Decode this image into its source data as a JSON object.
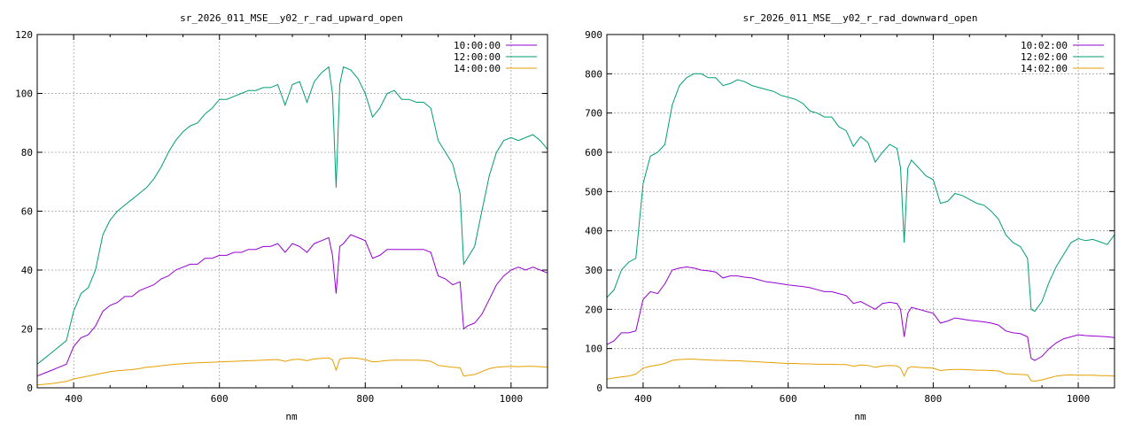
{
  "chart_data": [
    {
      "type": "line",
      "title": "sr_2026_011_MSE__y02_r_rad_upward_open",
      "xlabel": "nm",
      "ylabel": "",
      "xlim": [
        350,
        1050
      ],
      "ylim": [
        0,
        120
      ],
      "xticks": [
        400,
        600,
        800,
        1000
      ],
      "yticks": [
        0,
        20,
        40,
        60,
        80,
        100,
        120
      ],
      "grid": true,
      "legend_position": "top-right",
      "x": [
        350,
        360,
        370,
        380,
        390,
        400,
        410,
        420,
        430,
        440,
        450,
        460,
        470,
        480,
        490,
        500,
        510,
        520,
        530,
        540,
        550,
        560,
        570,
        580,
        590,
        600,
        610,
        620,
        630,
        640,
        650,
        660,
        670,
        680,
        690,
        700,
        710,
        720,
        730,
        740,
        750,
        755,
        760,
        765,
        770,
        780,
        790,
        800,
        810,
        820,
        830,
        840,
        850,
        860,
        870,
        880,
        890,
        900,
        910,
        920,
        930,
        935,
        940,
        950,
        960,
        970,
        980,
        990,
        1000,
        1010,
        1020,
        1030,
        1040,
        1050
      ],
      "series": [
        {
          "name": "10:00:00",
          "color": "#9400d3",
          "values": [
            4,
            5,
            6,
            7,
            8,
            14,
            17,
            18,
            21,
            26,
            28,
            29,
            31,
            31,
            33,
            34,
            35,
            37,
            38,
            40,
            41,
            42,
            42,
            44,
            44,
            45,
            45,
            46,
            46,
            47,
            47,
            48,
            48,
            49,
            46,
            49,
            48,
            46,
            49,
            50,
            51,
            45,
            32,
            48,
            49,
            52,
            51,
            50,
            44,
            45,
            47,
            47,
            47,
            47,
            47,
            47,
            46,
            38,
            37,
            35,
            36,
            20,
            21,
            22,
            25,
            30,
            35,
            38,
            40,
            41,
            40,
            41,
            40,
            39
          ]
        },
        {
          "name": "12:00:00",
          "color": "#009e73",
          "values": [
            8,
            10,
            12,
            14,
            16,
            26,
            32,
            34,
            40,
            52,
            57,
            60,
            62,
            64,
            66,
            68,
            71,
            75,
            80,
            84,
            87,
            89,
            90,
            93,
            95,
            98,
            98,
            99,
            100,
            101,
            101,
            102,
            102,
            103,
            96,
            103,
            104,
            97,
            104,
            107,
            109,
            100,
            68,
            103,
            109,
            108,
            105,
            100,
            92,
            95,
            100,
            101,
            98,
            98,
            97,
            97,
            95,
            84,
            80,
            76,
            66,
            42,
            44,
            48,
            60,
            72,
            80,
            84,
            85,
            84,
            85,
            86,
            84,
            81
          ]
        },
        {
          "name": "14:00:00",
          "color": "#e69f00",
          "values": [
            1,
            1.2,
            1.4,
            1.8,
            2.2,
            3,
            3.5,
            4,
            4.5,
            5,
            5.5,
            5.8,
            6,
            6.2,
            6.5,
            7,
            7.2,
            7.5,
            7.8,
            8,
            8.2,
            8.4,
            8.5,
            8.6,
            8.7,
            8.8,
            8.9,
            9,
            9.1,
            9.2,
            9.3,
            9.4,
            9.5,
            9.6,
            9,
            9.6,
            9.7,
            9.2,
            9.8,
            10,
            10.2,
            9.5,
            6,
            9.7,
            10,
            10.2,
            10,
            9.6,
            8.8,
            9,
            9.3,
            9.4,
            9.4,
            9.4,
            9.4,
            9.3,
            9,
            7.6,
            7.3,
            7,
            6.8,
            4,
            4.2,
            4.5,
            5.5,
            6.5,
            7,
            7.2,
            7.3,
            7.2,
            7.3,
            7.3,
            7.2,
            7
          ]
        }
      ]
    },
    {
      "type": "line",
      "title": "sr_2026_011_MSE__y02_r_rad_downward_open",
      "xlabel": "nm",
      "ylabel": "",
      "xlim": [
        350,
        1050
      ],
      "ylim": [
        0,
        900
      ],
      "xticks": [
        400,
        600,
        800,
        1000
      ],
      "yticks": [
        0,
        100,
        200,
        300,
        400,
        500,
        600,
        700,
        800,
        900
      ],
      "grid": true,
      "legend_position": "top-right",
      "x": [
        350,
        360,
        370,
        380,
        390,
        400,
        410,
        420,
        430,
        440,
        450,
        460,
        470,
        480,
        490,
        500,
        510,
        520,
        530,
        540,
        550,
        560,
        570,
        580,
        590,
        600,
        610,
        620,
        630,
        640,
        650,
        660,
        670,
        680,
        690,
        700,
        710,
        720,
        730,
        740,
        750,
        755,
        760,
        765,
        770,
        780,
        790,
        800,
        810,
        820,
        830,
        840,
        850,
        860,
        870,
        880,
        890,
        900,
        910,
        920,
        930,
        935,
        940,
        950,
        960,
        970,
        980,
        990,
        1000,
        1010,
        1020,
        1030,
        1040,
        1050
      ],
      "series": [
        {
          "name": "10:02:00",
          "color": "#9400d3",
          "values": [
            110,
            120,
            140,
            140,
            145,
            225,
            245,
            240,
            265,
            300,
            305,
            308,
            305,
            300,
            298,
            295,
            280,
            285,
            285,
            282,
            280,
            275,
            270,
            268,
            265,
            262,
            260,
            258,
            255,
            250,
            245,
            245,
            240,
            235,
            215,
            220,
            210,
            200,
            215,
            218,
            215,
            200,
            130,
            190,
            205,
            200,
            195,
            190,
            165,
            170,
            178,
            175,
            172,
            170,
            168,
            165,
            160,
            145,
            140,
            138,
            130,
            75,
            70,
            80,
            100,
            115,
            125,
            130,
            135,
            133,
            132,
            131,
            130,
            128
          ]
        },
        {
          "name": "12:02:00",
          "color": "#009e73",
          "values": [
            230,
            250,
            300,
            320,
            330,
            520,
            590,
            600,
            620,
            720,
            770,
            790,
            800,
            800,
            790,
            790,
            770,
            775,
            785,
            780,
            770,
            765,
            760,
            755,
            745,
            740,
            735,
            725,
            705,
            700,
            690,
            690,
            665,
            655,
            615,
            640,
            625,
            575,
            600,
            620,
            610,
            560,
            370,
            560,
            580,
            560,
            540,
            530,
            470,
            475,
            495,
            490,
            480,
            470,
            465,
            450,
            430,
            390,
            370,
            360,
            330,
            200,
            195,
            220,
            270,
            310,
            340,
            370,
            380,
            375,
            378,
            372,
            365,
            390
          ]
        },
        {
          "name": "14:02:00",
          "color": "#e69f00",
          "values": [
            22,
            25,
            28,
            30,
            35,
            50,
            55,
            58,
            62,
            70,
            72,
            73,
            73,
            72,
            71,
            70,
            70,
            69,
            69,
            68,
            67,
            66,
            65,
            64,
            63,
            62,
            62,
            61,
            61,
            60,
            60,
            60,
            59,
            59,
            55,
            58,
            57,
            52,
            56,
            57,
            56,
            50,
            30,
            50,
            54,
            52,
            51,
            50,
            44,
            46,
            47,
            47,
            46,
            45,
            45,
            44,
            43,
            36,
            35,
            34,
            33,
            18,
            17,
            20,
            25,
            30,
            32,
            33,
            32,
            32,
            32,
            31,
            31,
            30
          ]
        }
      ]
    }
  ]
}
